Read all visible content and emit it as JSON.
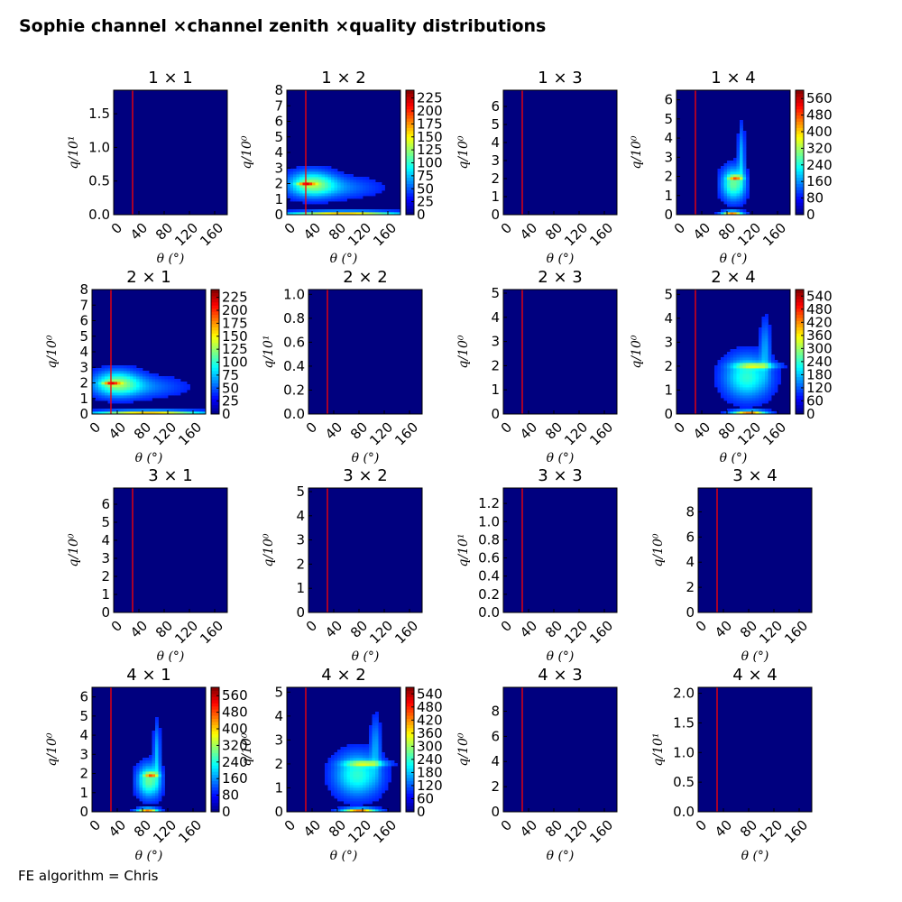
{
  "figure": {
    "title": "Sophie channel ×channel zenith ×quality distributions",
    "footer": "FE algorithm = Chris"
  },
  "colors": {
    "background": "#00007f",
    "cut_line": "#ff0000",
    "colormap": "jet"
  },
  "chart_data": [
    {
      "type": "heatmap",
      "title": "1  × 1",
      "xlabel": "θ (°)",
      "ylabel": "q/10¹",
      "xticks": [
        "0",
        "40",
        "80",
        "120",
        "160"
      ],
      "xlim": [
        0,
        180
      ],
      "ylim": [
        0,
        1.85
      ],
      "yticks": [
        "0.0",
        "0.5",
        "1.0",
        "1.5"
      ],
      "cut_theta": 30,
      "colorbar": null,
      "pattern": "empty"
    },
    {
      "type": "heatmap",
      "title": "1  × 2",
      "xlabel": "θ (°)",
      "ylabel": "q/10⁰",
      "xticks": [
        "0",
        "40",
        "80",
        "120",
        "160"
      ],
      "xlim": [
        0,
        180
      ],
      "ylim": [
        0,
        8
      ],
      "yticks": [
        "0",
        "1",
        "2",
        "3",
        "4",
        "5",
        "6",
        "7",
        "8"
      ],
      "cut_theta": 30,
      "colorbar": {
        "ticks": [
          "0",
          "25",
          "50",
          "75",
          "100",
          "125",
          "150",
          "175",
          "200",
          "225"
        ],
        "max": 240
      },
      "pattern": "low_theta"
    },
    {
      "type": "heatmap",
      "title": "1  × 3",
      "xlabel": "θ (°)",
      "ylabel": "q/10⁰",
      "xticks": [
        "0",
        "40",
        "80",
        "120",
        "160"
      ],
      "xlim": [
        0,
        180
      ],
      "ylim": [
        0,
        6.9
      ],
      "yticks": [
        "0",
        "1",
        "2",
        "3",
        "4",
        "5",
        "6"
      ],
      "cut_theta": 30,
      "colorbar": null,
      "pattern": "empty"
    },
    {
      "type": "heatmap",
      "title": "1  × 4",
      "xlabel": "θ (°)",
      "ylabel": "q/10⁰",
      "xticks": [
        "0",
        "40",
        "80",
        "120",
        "160"
      ],
      "xlim": [
        0,
        180
      ],
      "ylim": [
        0,
        6.5
      ],
      "yticks": [
        "0",
        "1",
        "2",
        "3",
        "4",
        "5",
        "6"
      ],
      "cut_theta": 30,
      "colorbar": {
        "ticks": [
          "0",
          "80",
          "160",
          "240",
          "320",
          "400",
          "480",
          "560"
        ],
        "max": 600
      },
      "pattern": "mid_theta"
    },
    {
      "type": "heatmap",
      "title": "2  × 1",
      "xlabel": "θ (°)",
      "ylabel": "q/10⁰",
      "xticks": [
        "0",
        "40",
        "80",
        "120",
        "160"
      ],
      "xlim": [
        0,
        180
      ],
      "ylim": [
        0,
        8
      ],
      "yticks": [
        "0",
        "1",
        "2",
        "3",
        "4",
        "5",
        "6",
        "7",
        "8"
      ],
      "cut_theta": 30,
      "colorbar": {
        "ticks": [
          "0",
          "25",
          "50",
          "75",
          "100",
          "125",
          "150",
          "175",
          "200",
          "225"
        ],
        "max": 240
      },
      "pattern": "low_theta"
    },
    {
      "type": "heatmap",
      "title": "2  × 2",
      "xlabel": "θ (°)",
      "ylabel": "q/10¹",
      "xticks": [
        "0",
        "40",
        "80",
        "120",
        "160"
      ],
      "xlim": [
        0,
        180
      ],
      "ylim": [
        0,
        1.04
      ],
      "yticks": [
        "0.0",
        "0.2",
        "0.4",
        "0.6",
        "0.8",
        "1.0"
      ],
      "cut_theta": 30,
      "colorbar": null,
      "pattern": "empty"
    },
    {
      "type": "heatmap",
      "title": "2  × 3",
      "xlabel": "θ (°)",
      "ylabel": "q/10⁰",
      "xticks": [
        "0",
        "40",
        "80",
        "120",
        "160"
      ],
      "xlim": [
        0,
        180
      ],
      "ylim": [
        0,
        5.15
      ],
      "yticks": [
        "0",
        "1",
        "2",
        "3",
        "4",
        "5"
      ],
      "cut_theta": 30,
      "colorbar": null,
      "pattern": "empty"
    },
    {
      "type": "heatmap",
      "title": "2  × 4",
      "xlabel": "θ (°)",
      "ylabel": "q/10⁰",
      "xticks": [
        "0",
        "40",
        "80",
        "120",
        "160"
      ],
      "xlim": [
        0,
        180
      ],
      "ylim": [
        0,
        5.2
      ],
      "yticks": [
        "0",
        "1",
        "2",
        "3",
        "4",
        "5"
      ],
      "cut_theta": 30,
      "colorbar": {
        "ticks": [
          "0",
          "60",
          "120",
          "180",
          "240",
          "300",
          "360",
          "420",
          "480",
          "540"
        ],
        "max": 570
      },
      "pattern": "high_theta"
    },
    {
      "type": "heatmap",
      "title": "3  × 1",
      "xlabel": "θ (°)",
      "ylabel": "q/10⁰",
      "xticks": [
        "0",
        "40",
        "80",
        "120",
        "160"
      ],
      "xlim": [
        0,
        180
      ],
      "ylim": [
        0,
        6.9
      ],
      "yticks": [
        "0",
        "1",
        "2",
        "3",
        "4",
        "5",
        "6"
      ],
      "cut_theta": 30,
      "colorbar": null,
      "pattern": "empty"
    },
    {
      "type": "heatmap",
      "title": "3  × 2",
      "xlabel": "θ (°)",
      "ylabel": "q/10⁰",
      "xticks": [
        "0",
        "40",
        "80",
        "120",
        "160"
      ],
      "xlim": [
        0,
        180
      ],
      "ylim": [
        0,
        5.15
      ],
      "yticks": [
        "0",
        "1",
        "2",
        "3",
        "4",
        "5"
      ],
      "cut_theta": 30,
      "colorbar": null,
      "pattern": "empty"
    },
    {
      "type": "heatmap",
      "title": "3  × 3",
      "xlabel": "θ (°)",
      "ylabel": "q/10¹",
      "xticks": [
        "0",
        "40",
        "80",
        "120",
        "160"
      ],
      "xlim": [
        0,
        180
      ],
      "ylim": [
        0,
        1.37
      ],
      "yticks": [
        "0.0",
        "0.2",
        "0.4",
        "0.6",
        "0.8",
        "1.0",
        "1.2"
      ],
      "cut_theta": 30,
      "colorbar": null,
      "pattern": "empty"
    },
    {
      "type": "heatmap",
      "title": "3  × 4",
      "xlabel": "θ (°)",
      "ylabel": "q/10⁰",
      "xticks": [
        "0",
        "40",
        "80",
        "120",
        "160"
      ],
      "xlim": [
        0,
        180
      ],
      "ylim": [
        0,
        9.9
      ],
      "yticks": [
        "0",
        "2",
        "4",
        "6",
        "8"
      ],
      "cut_theta": 30,
      "colorbar": null,
      "pattern": "empty"
    },
    {
      "type": "heatmap",
      "title": "4  × 1",
      "xlabel": "θ (°)",
      "ylabel": "q/10⁰",
      "xticks": [
        "0",
        "40",
        "80",
        "120",
        "160"
      ],
      "xlim": [
        0,
        180
      ],
      "ylim": [
        0,
        6.5
      ],
      "yticks": [
        "0",
        "1",
        "2",
        "3",
        "4",
        "5",
        "6"
      ],
      "cut_theta": 30,
      "colorbar": {
        "ticks": [
          "0",
          "80",
          "160",
          "240",
          "320",
          "400",
          "480",
          "560"
        ],
        "max": 600
      },
      "pattern": "mid_theta"
    },
    {
      "type": "heatmap",
      "title": "4  × 2",
      "xlabel": "θ (°)",
      "ylabel": "q/10⁰",
      "xticks": [
        "0",
        "40",
        "80",
        "120",
        "160"
      ],
      "xlim": [
        0,
        180
      ],
      "ylim": [
        0,
        5.2
      ],
      "yticks": [
        "0",
        "1",
        "2",
        "3",
        "4",
        "5"
      ],
      "cut_theta": 30,
      "colorbar": {
        "ticks": [
          "0",
          "60",
          "120",
          "180",
          "240",
          "300",
          "360",
          "420",
          "480",
          "540"
        ],
        "max": 570
      },
      "pattern": "high_theta"
    },
    {
      "type": "heatmap",
      "title": "4  × 3",
      "xlabel": "θ (°)",
      "ylabel": "q/10⁰",
      "xticks": [
        "0",
        "40",
        "80",
        "120",
        "160"
      ],
      "xlim": [
        0,
        180
      ],
      "ylim": [
        0,
        9.9
      ],
      "yticks": [
        "0",
        "2",
        "4",
        "6",
        "8"
      ],
      "cut_theta": 30,
      "colorbar": null,
      "pattern": "empty"
    },
    {
      "type": "heatmap",
      "title": "4  × 4",
      "xlabel": "θ (°)",
      "ylabel": "q/10¹",
      "xticks": [
        "0",
        "40",
        "80",
        "120",
        "160"
      ],
      "xlim": [
        0,
        180
      ],
      "ylim": [
        0,
        2.1
      ],
      "yticks": [
        "0.0",
        "0.5",
        "1.0",
        "1.5",
        "2.0"
      ],
      "cut_theta": 30,
      "colorbar": null,
      "pattern": "empty"
    }
  ]
}
